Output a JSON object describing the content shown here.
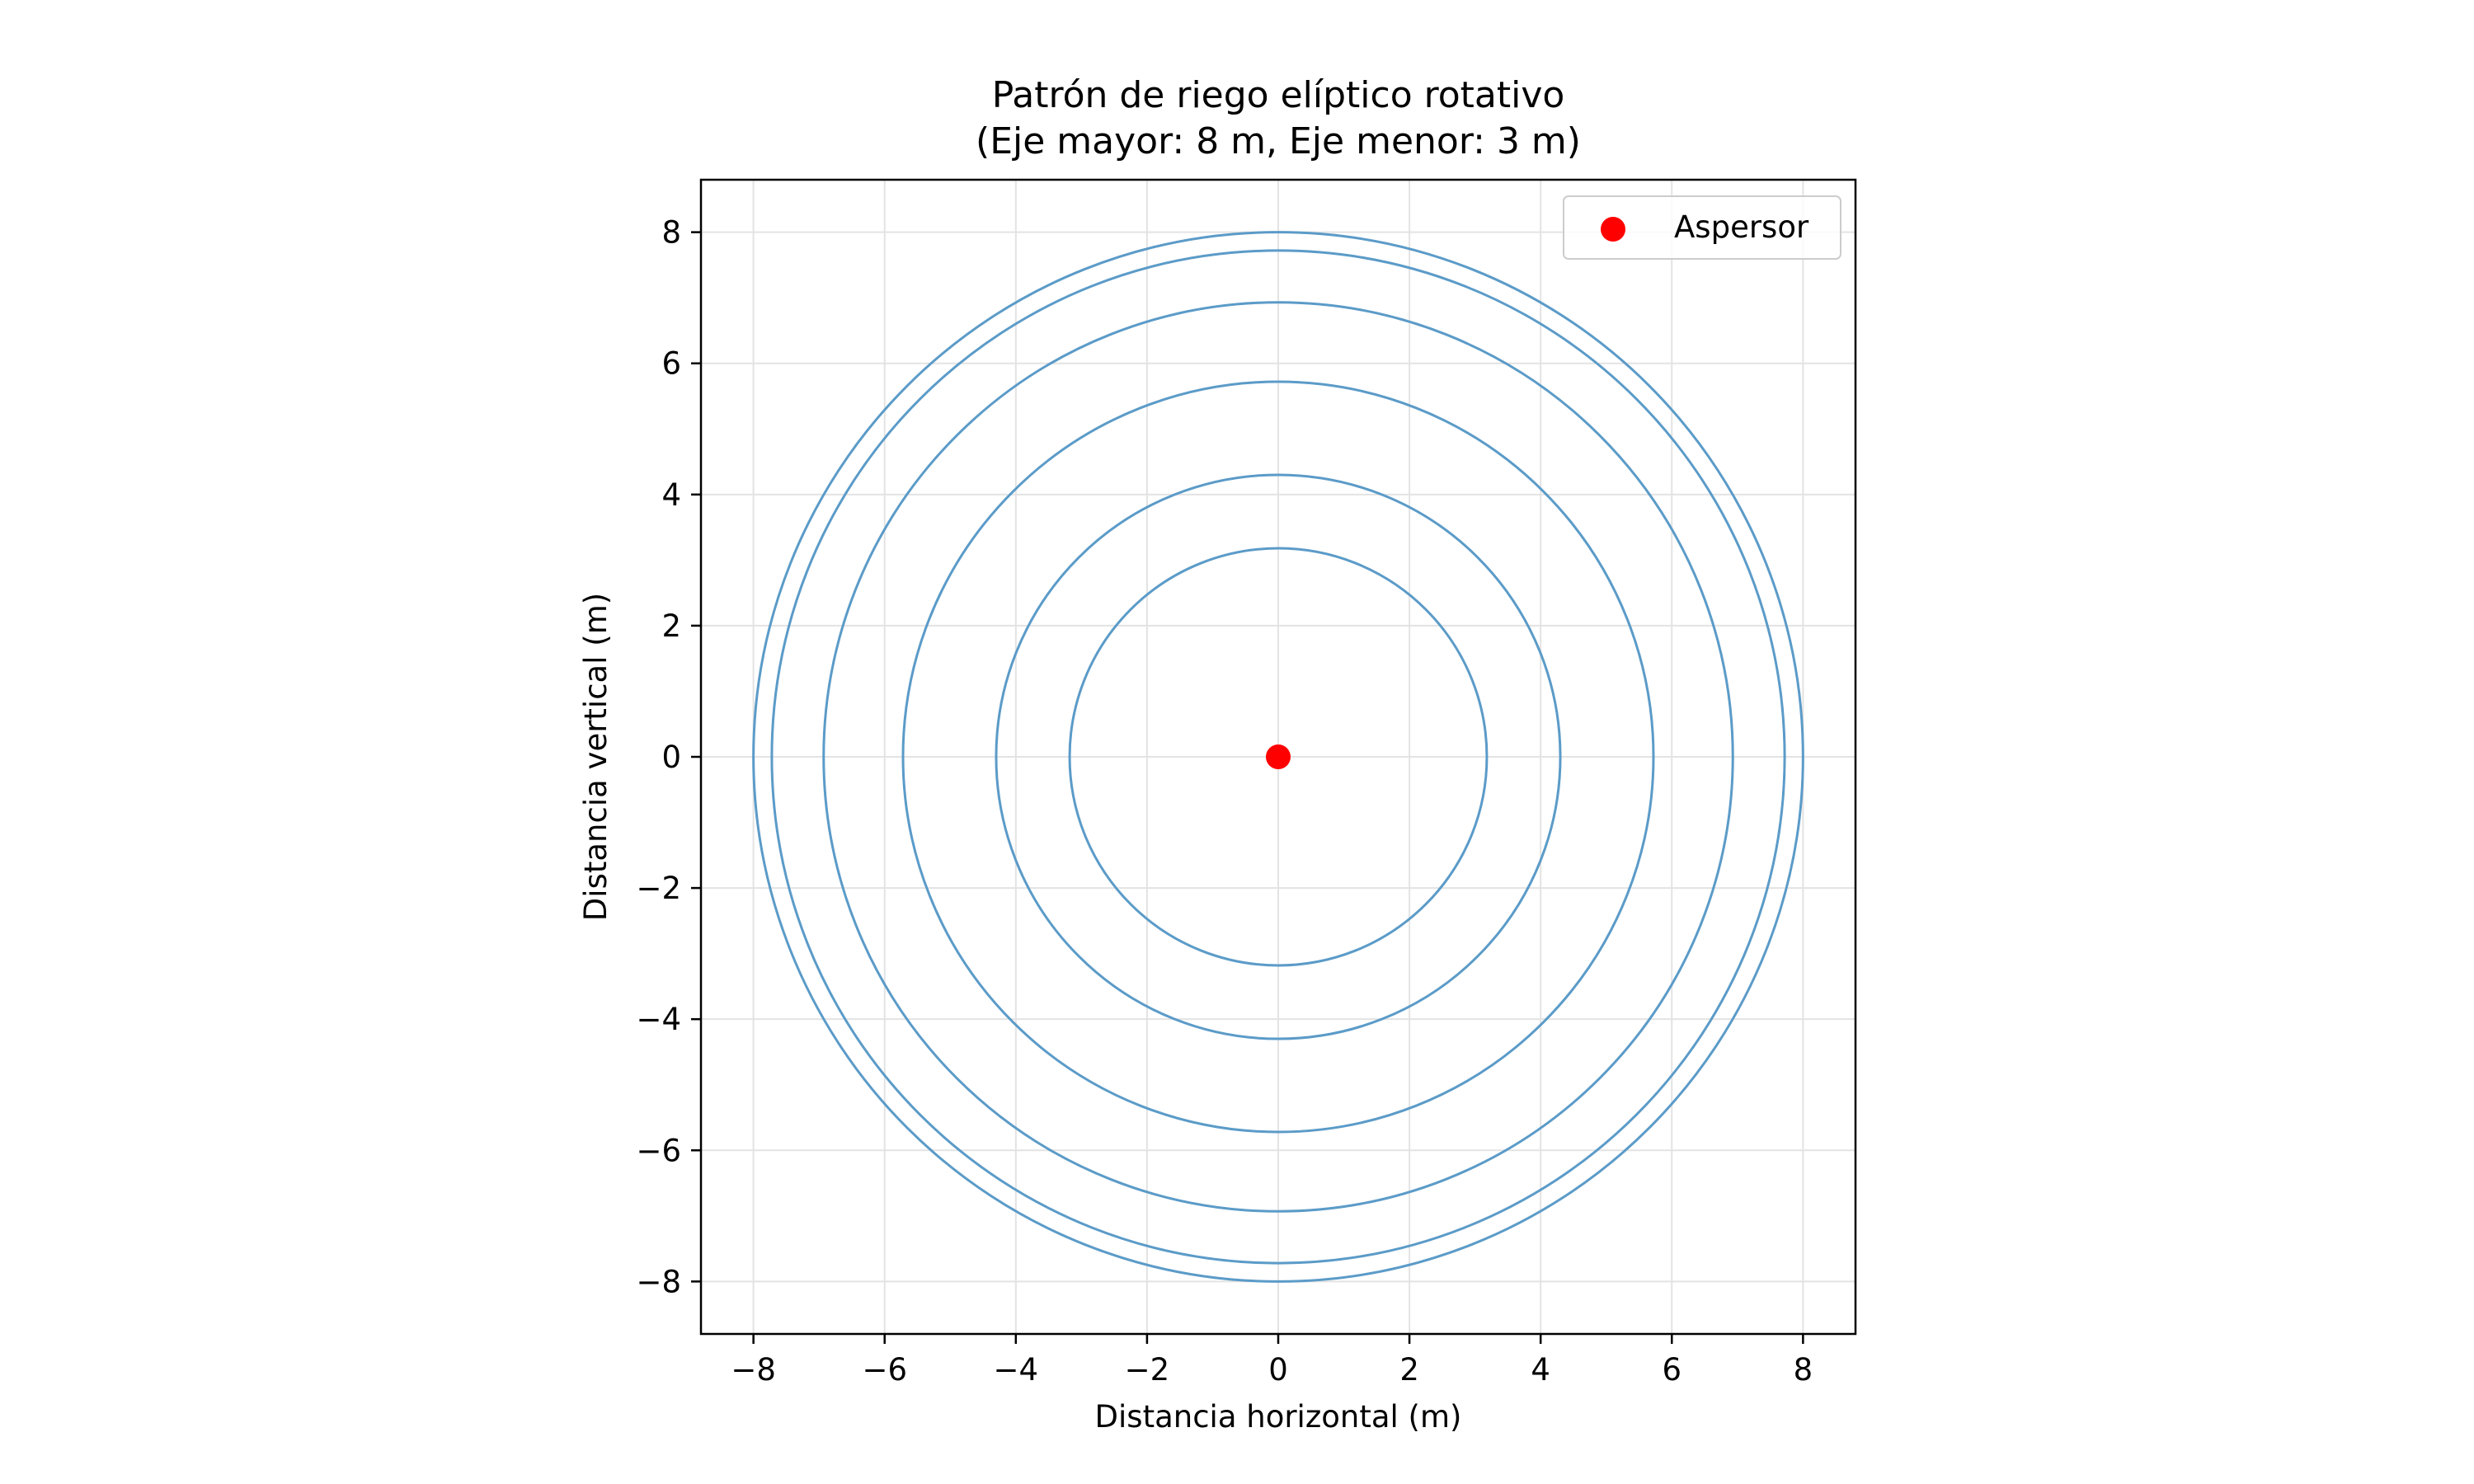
{
  "chart_data": {
    "type": "line",
    "title": "Patrón de riego elíptico rotativo",
    "subtitle": "(Eje mayor: 8 m, Eje menor: 3 m)",
    "xlabel": "Distancia horizontal (m)",
    "ylabel": "Distancia vertical (m)",
    "xlim": [
      -8.8,
      8.8
    ],
    "ylim": [
      -8.8,
      8.8
    ],
    "xticks": [
      -8,
      -6,
      -4,
      -2,
      0,
      2,
      4,
      6,
      8
    ],
    "yticks": [
      -8,
      -6,
      -4,
      -2,
      0,
      2,
      4,
      6,
      8
    ],
    "xtick_labels": [
      "−8",
      "−6",
      "−4",
      "−2",
      "0",
      "2",
      "4",
      "6",
      "8"
    ],
    "ytick_labels": [
      "−8",
      "−6",
      "−4",
      "−2",
      "0",
      "2",
      "4",
      "6",
      "8"
    ],
    "grid": true,
    "legend_position": "top-right",
    "series": [
      {
        "kind": "circle",
        "center": [
          0,
          0
        ],
        "radius": 3.18,
        "color": "#5b9bc8"
      },
      {
        "kind": "circle",
        "center": [
          0,
          0
        ],
        "radius": 4.3,
        "color": "#5b9bc8"
      },
      {
        "kind": "circle",
        "center": [
          0,
          0
        ],
        "radius": 5.72,
        "color": "#5b9bc8"
      },
      {
        "kind": "circle",
        "center": [
          0,
          0
        ],
        "radius": 6.93,
        "color": "#5b9bc8"
      },
      {
        "kind": "circle",
        "center": [
          0,
          0
        ],
        "radius": 7.72,
        "color": "#5b9bc8"
      },
      {
        "kind": "circle",
        "center": [
          0,
          0
        ],
        "radius": 8.0,
        "color": "#5b9bc8"
      },
      {
        "kind": "scatter",
        "name": "Aspersor",
        "x": [
          0
        ],
        "y": [
          0
        ],
        "color": "#ff0000"
      }
    ]
  }
}
